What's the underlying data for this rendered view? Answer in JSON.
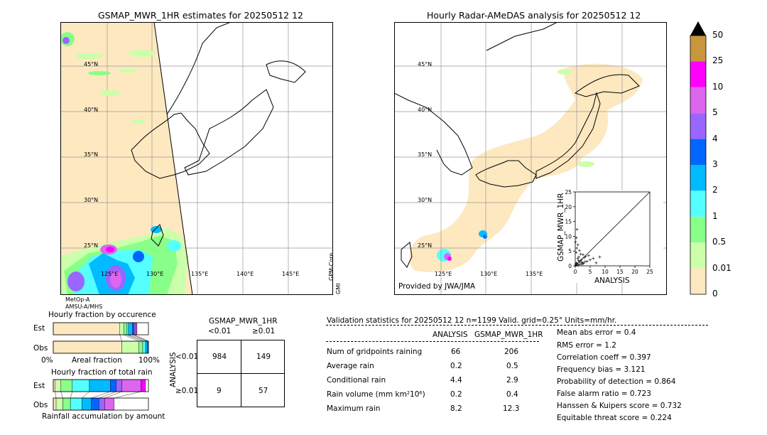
{
  "left_map": {
    "title": "GSMAP_MWR_1HR estimates for 20250512 12",
    "lat_labels": [
      "45°N",
      "40°N",
      "35°N",
      "30°N",
      "25°N"
    ],
    "lon_labels": [
      "125°E",
      "130°E",
      "135°E",
      "140°E",
      "145°E"
    ],
    "satellite_labels": [
      "MetOp-A",
      "AMSU-A/MHS"
    ],
    "side_labels": [
      "GPM-Core",
      "GMI"
    ]
  },
  "right_map": {
    "title": "Hourly Radar-AMeDAS analysis for 20250512 12",
    "lat_labels": [
      "45°N",
      "40°N",
      "35°N",
      "30°N",
      "25°N"
    ],
    "lon_labels": [
      "125°E",
      "130°E",
      "135°E"
    ],
    "provider": "Provided by JWA/JMA"
  },
  "colorbar": {
    "labels": [
      "50",
      "25",
      "10",
      "5",
      "4",
      "3",
      "2",
      "1",
      "0.5",
      "0.01",
      "0"
    ],
    "colors": [
      "#c8963c",
      "#ff00ff",
      "#dd66ee",
      "#9966ff",
      "#0066ff",
      "#00bbff",
      "#55ffff",
      "#88ff88",
      "#ccffaa",
      "#fde8c0"
    ],
    "top_triangle": "#000000"
  },
  "chart_data": [
    {
      "type": "scatter",
      "title": "",
      "xlabel": "ANALYSIS",
      "ylabel": "GSMAP_MWR_1HR",
      "xlim": [
        0,
        25
      ],
      "ylim": [
        0,
        25
      ],
      "x_ticks": [
        "0",
        "5",
        "10",
        "15",
        "20",
        "25"
      ],
      "y_ticks": [
        "0",
        "5",
        "10",
        "15",
        "20",
        "25"
      ],
      "points": [
        {
          "x": 0.2,
          "y": 0.5
        },
        {
          "x": 0.5,
          "y": 1.0
        },
        {
          "x": 0.8,
          "y": 2.5
        },
        {
          "x": 1.0,
          "y": 0.3
        },
        {
          "x": 1.2,
          "y": 3.0
        },
        {
          "x": 0.3,
          "y": 4.5
        },
        {
          "x": 0.5,
          "y": 6.0
        },
        {
          "x": 0.1,
          "y": 8.0
        },
        {
          "x": 0.4,
          "y": 9.5
        },
        {
          "x": 0.6,
          "y": 12.3
        },
        {
          "x": 1.5,
          "y": 1.5
        },
        {
          "x": 2.0,
          "y": 2.0
        },
        {
          "x": 2.5,
          "y": 1.0
        },
        {
          "x": 3.0,
          "y": 2.8
        },
        {
          "x": 3.5,
          "y": 3.2
        },
        {
          "x": 1.8,
          "y": 4.0
        },
        {
          "x": 2.2,
          "y": 0.5
        },
        {
          "x": 4.0,
          "y": 1.5
        },
        {
          "x": 4.5,
          "y": 3.5
        },
        {
          "x": 5.0,
          "y": 2.0
        },
        {
          "x": 6.0,
          "y": 2.5
        },
        {
          "x": 7.0,
          "y": 1.0
        },
        {
          "x": 8.2,
          "y": 3.0
        },
        {
          "x": 0.7,
          "y": 0.2
        },
        {
          "x": 1.1,
          "y": 1.8
        },
        {
          "x": 2.8,
          "y": 0.8
        },
        {
          "x": 3.3,
          "y": 1.4
        },
        {
          "x": 1.4,
          "y": 5.2
        },
        {
          "x": 0.9,
          "y": 7.1
        },
        {
          "x": 2.6,
          "y": 3.8
        },
        {
          "x": 0.2,
          "y": 0.2
        },
        {
          "x": 0.4,
          "y": 0.8
        },
        {
          "x": 1.6,
          "y": 0.6
        },
        {
          "x": 2.1,
          "y": 1.2
        }
      ]
    },
    {
      "type": "bar",
      "title": "Hourly fraction by occurence",
      "rows": [
        "Est",
        "Obs"
      ],
      "axis_labels": [
        "0%",
        "Areal fraction",
        "100%"
      ],
      "stacks": [
        [
          0.7,
          0.04,
          0.03,
          0.02,
          0.04,
          0.02,
          0.02,
          0.01
        ],
        [
          0.72,
          0.18,
          0.04,
          0.03,
          0.02,
          0.01
        ]
      ]
    },
    {
      "type": "bar",
      "title": "Hourly fraction of total rain",
      "rows": [
        "Est",
        "Obs"
      ],
      "axis_label": "Rainfall accumulation by amount",
      "stacks": [
        [
          0.02,
          0.06,
          0.12,
          0.18,
          0.22,
          0.06,
          0.06,
          0.2,
          0.05
        ],
        [
          0.03,
          0.07,
          0.08,
          0.12,
          0.1,
          0.08,
          0.06,
          0.1
        ]
      ]
    }
  ],
  "contingency": {
    "title": "GSMAP_MWR_1HR",
    "col_headers": [
      "<0.01",
      "≥0.01"
    ],
    "row_axis": "ANALYSIS",
    "row_headers": [
      "<0.01",
      "≥0.01"
    ],
    "cells": [
      [
        "984",
        "149"
      ],
      [
        "9",
        "57"
      ]
    ]
  },
  "validation": {
    "header": "Validation statistics for 20250512 12  n=1199 Valid. grid=0.25° Units=mm/hr.",
    "col_analysis": "ANALYSIS",
    "col_gsmap": "GSMAP_MWR_1HR",
    "rows": [
      {
        "label": "Num of gridpoints raining",
        "a": "66",
        "g": "206"
      },
      {
        "label": "Average rain",
        "a": "0.2",
        "g": "0.5"
      },
      {
        "label": "Conditional rain",
        "a": "4.4",
        "g": "2.9"
      },
      {
        "label": "Rain volume (mm km²10⁶)",
        "a": "0.2",
        "g": "0.4"
      },
      {
        "label": "Maximum rain",
        "a": "8.2",
        "g": "12.3"
      }
    ],
    "scores": [
      "Mean abs error =    0.4",
      "RMS error =    1.2",
      "Correlation coeff =  0.397",
      "Frequency bias =  3.121",
      "Probability of detection =  0.864",
      "False alarm ratio =  0.723",
      "Hanssen & Kuipers score =  0.732",
      "Equitable threat score =  0.224"
    ]
  }
}
